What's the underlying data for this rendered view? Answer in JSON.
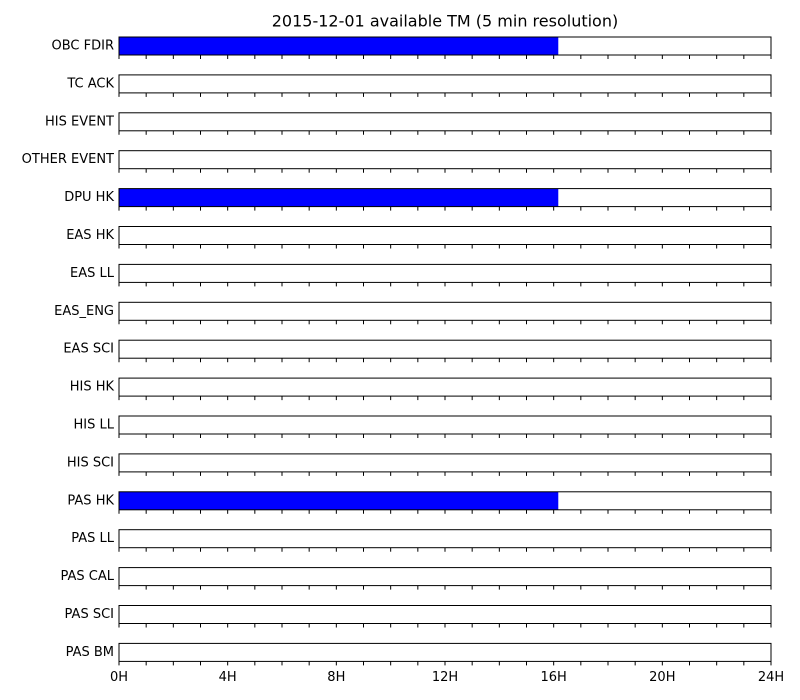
{
  "chart_data": {
    "type": "bar",
    "orientation": "horizontal",
    "title": "2015-12-01 available TM (5 min resolution)",
    "categories": [
      "OBC FDIR",
      "TC ACK",
      "HIS EVENT",
      "OTHER EVENT",
      "DPU HK",
      "EAS HK",
      "EAS LL",
      "EAS_ENG",
      "EAS SCI",
      "HIS HK",
      "HIS LL",
      "HIS SCI",
      "PAS HK",
      "PAS LL",
      "PAS CAL",
      "PAS SCI",
      "PAS BM"
    ],
    "values": [
      16.17,
      0,
      0,
      0,
      16.17,
      0,
      0,
      0,
      0,
      0,
      0,
      0,
      16.17,
      0,
      0,
      0,
      0
    ],
    "color": "#0000ff",
    "xlim": [
      0,
      24
    ],
    "xticks": [
      {
        "value": 0,
        "label": "0H"
      },
      {
        "value": 4,
        "label": "4H"
      },
      {
        "value": 8,
        "label": "8H"
      },
      {
        "value": 12,
        "label": "12H"
      },
      {
        "value": 16,
        "label": "16H"
      },
      {
        "value": 20,
        "label": "20H"
      },
      {
        "value": 24,
        "label": "24H"
      }
    ],
    "xminorticks": [
      1,
      2,
      3,
      5,
      6,
      7,
      9,
      10,
      11,
      13,
      14,
      15,
      17,
      18,
      19,
      21,
      22,
      23
    ]
  }
}
